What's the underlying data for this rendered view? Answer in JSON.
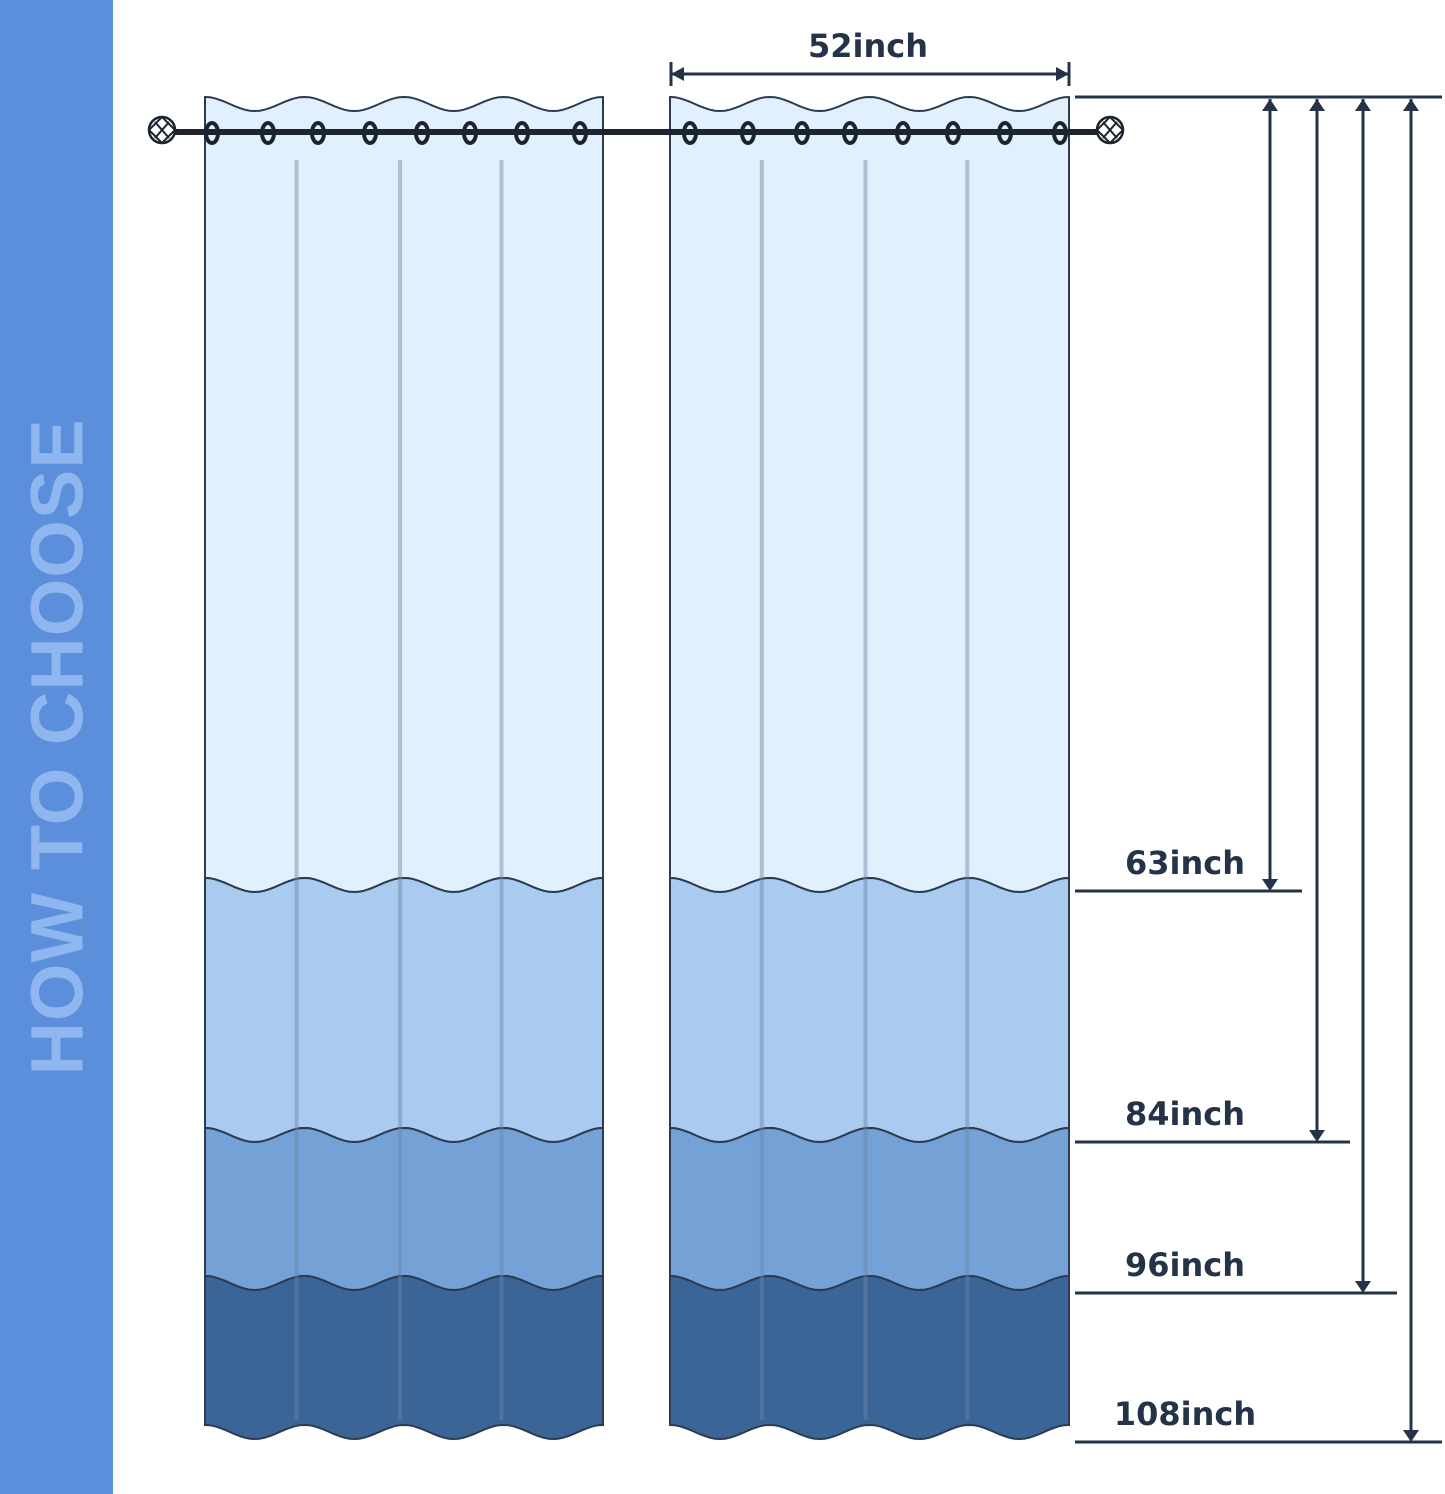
{
  "sidebar": {
    "title": "HOW TO CHOOSE"
  },
  "width_label": "52inch",
  "length_labels": [
    "63inch",
    "84inch",
    "96inch",
    "108inch"
  ],
  "colors": {
    "sidebar": "#5b8fdc",
    "band_1": "#e0f0fc",
    "band_2": "#a9cbf0",
    "band_3": "#74a2d6",
    "band_4": "#3b6597",
    "ink": "#253348"
  }
}
